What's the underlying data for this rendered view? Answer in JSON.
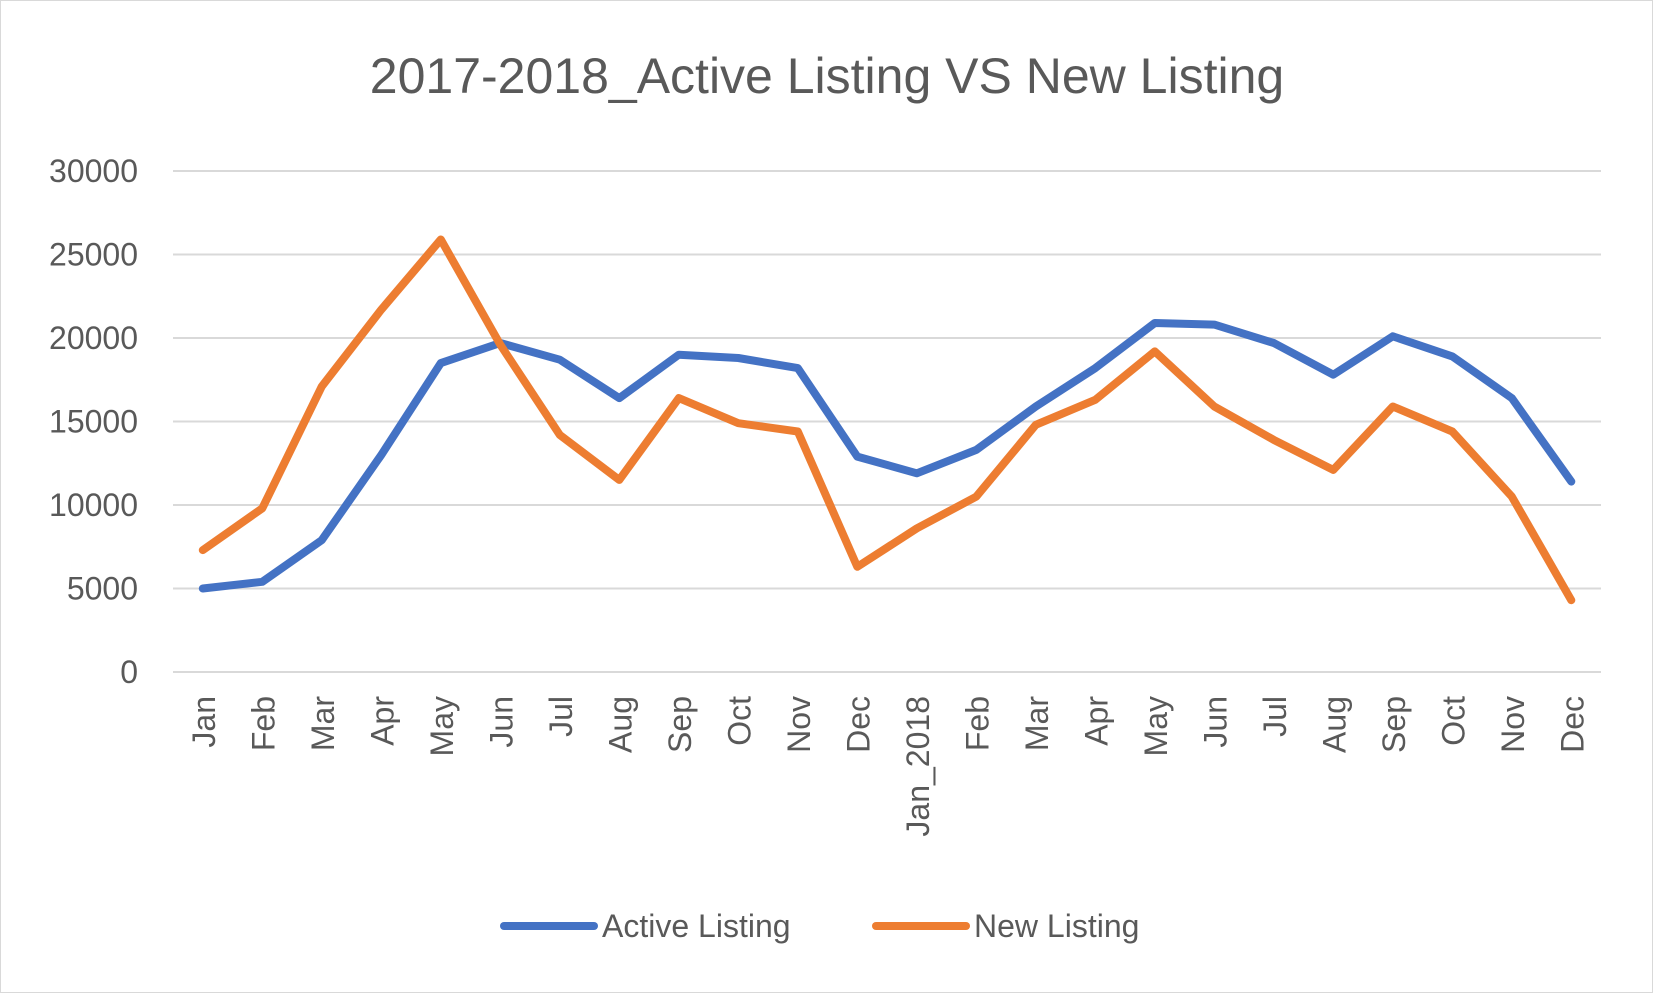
{
  "chart_data": {
    "type": "line",
    "title": "2017-2018_Active Listing VS New Listing",
    "categories": [
      "Jan",
      "Feb",
      "Mar",
      "Apr",
      "May",
      "Jun",
      "Jul",
      "Aug",
      "Sep",
      "Oct",
      "Nov",
      "Dec",
      "Jan_2018",
      "Feb",
      "Mar",
      "Apr",
      "May",
      "Jun",
      "Jul",
      "Aug",
      "Sep",
      "Oct",
      "Nov",
      "Dec"
    ],
    "series": [
      {
        "name": "Active Listing",
        "color": "#4472c4",
        "values": [
          5000,
          5400,
          7900,
          13000,
          18500,
          19700,
          18700,
          16400,
          19000,
          18800,
          18200,
          12900,
          11900,
          13300,
          15900,
          18200,
          20900,
          20800,
          19700,
          17800,
          20100,
          18900,
          16400,
          11400
        ]
      },
      {
        "name": "New Listing",
        "color": "#ed7d31",
        "values": [
          7300,
          9800,
          17100,
          21700,
          25900,
          19600,
          14200,
          11500,
          16400,
          14900,
          14400,
          6300,
          8600,
          10500,
          14800,
          16300,
          19200,
          15900,
          13900,
          12100,
          15900,
          14400,
          10500,
          4300
        ]
      }
    ],
    "yticks": [
      "0",
      "5000",
      "10000",
      "15000",
      "20000",
      "25000",
      "30000"
    ],
    "ylim": [
      0,
      30000
    ],
    "grid": true,
    "legend": "bottom",
    "xlabel": "",
    "ylabel": ""
  }
}
